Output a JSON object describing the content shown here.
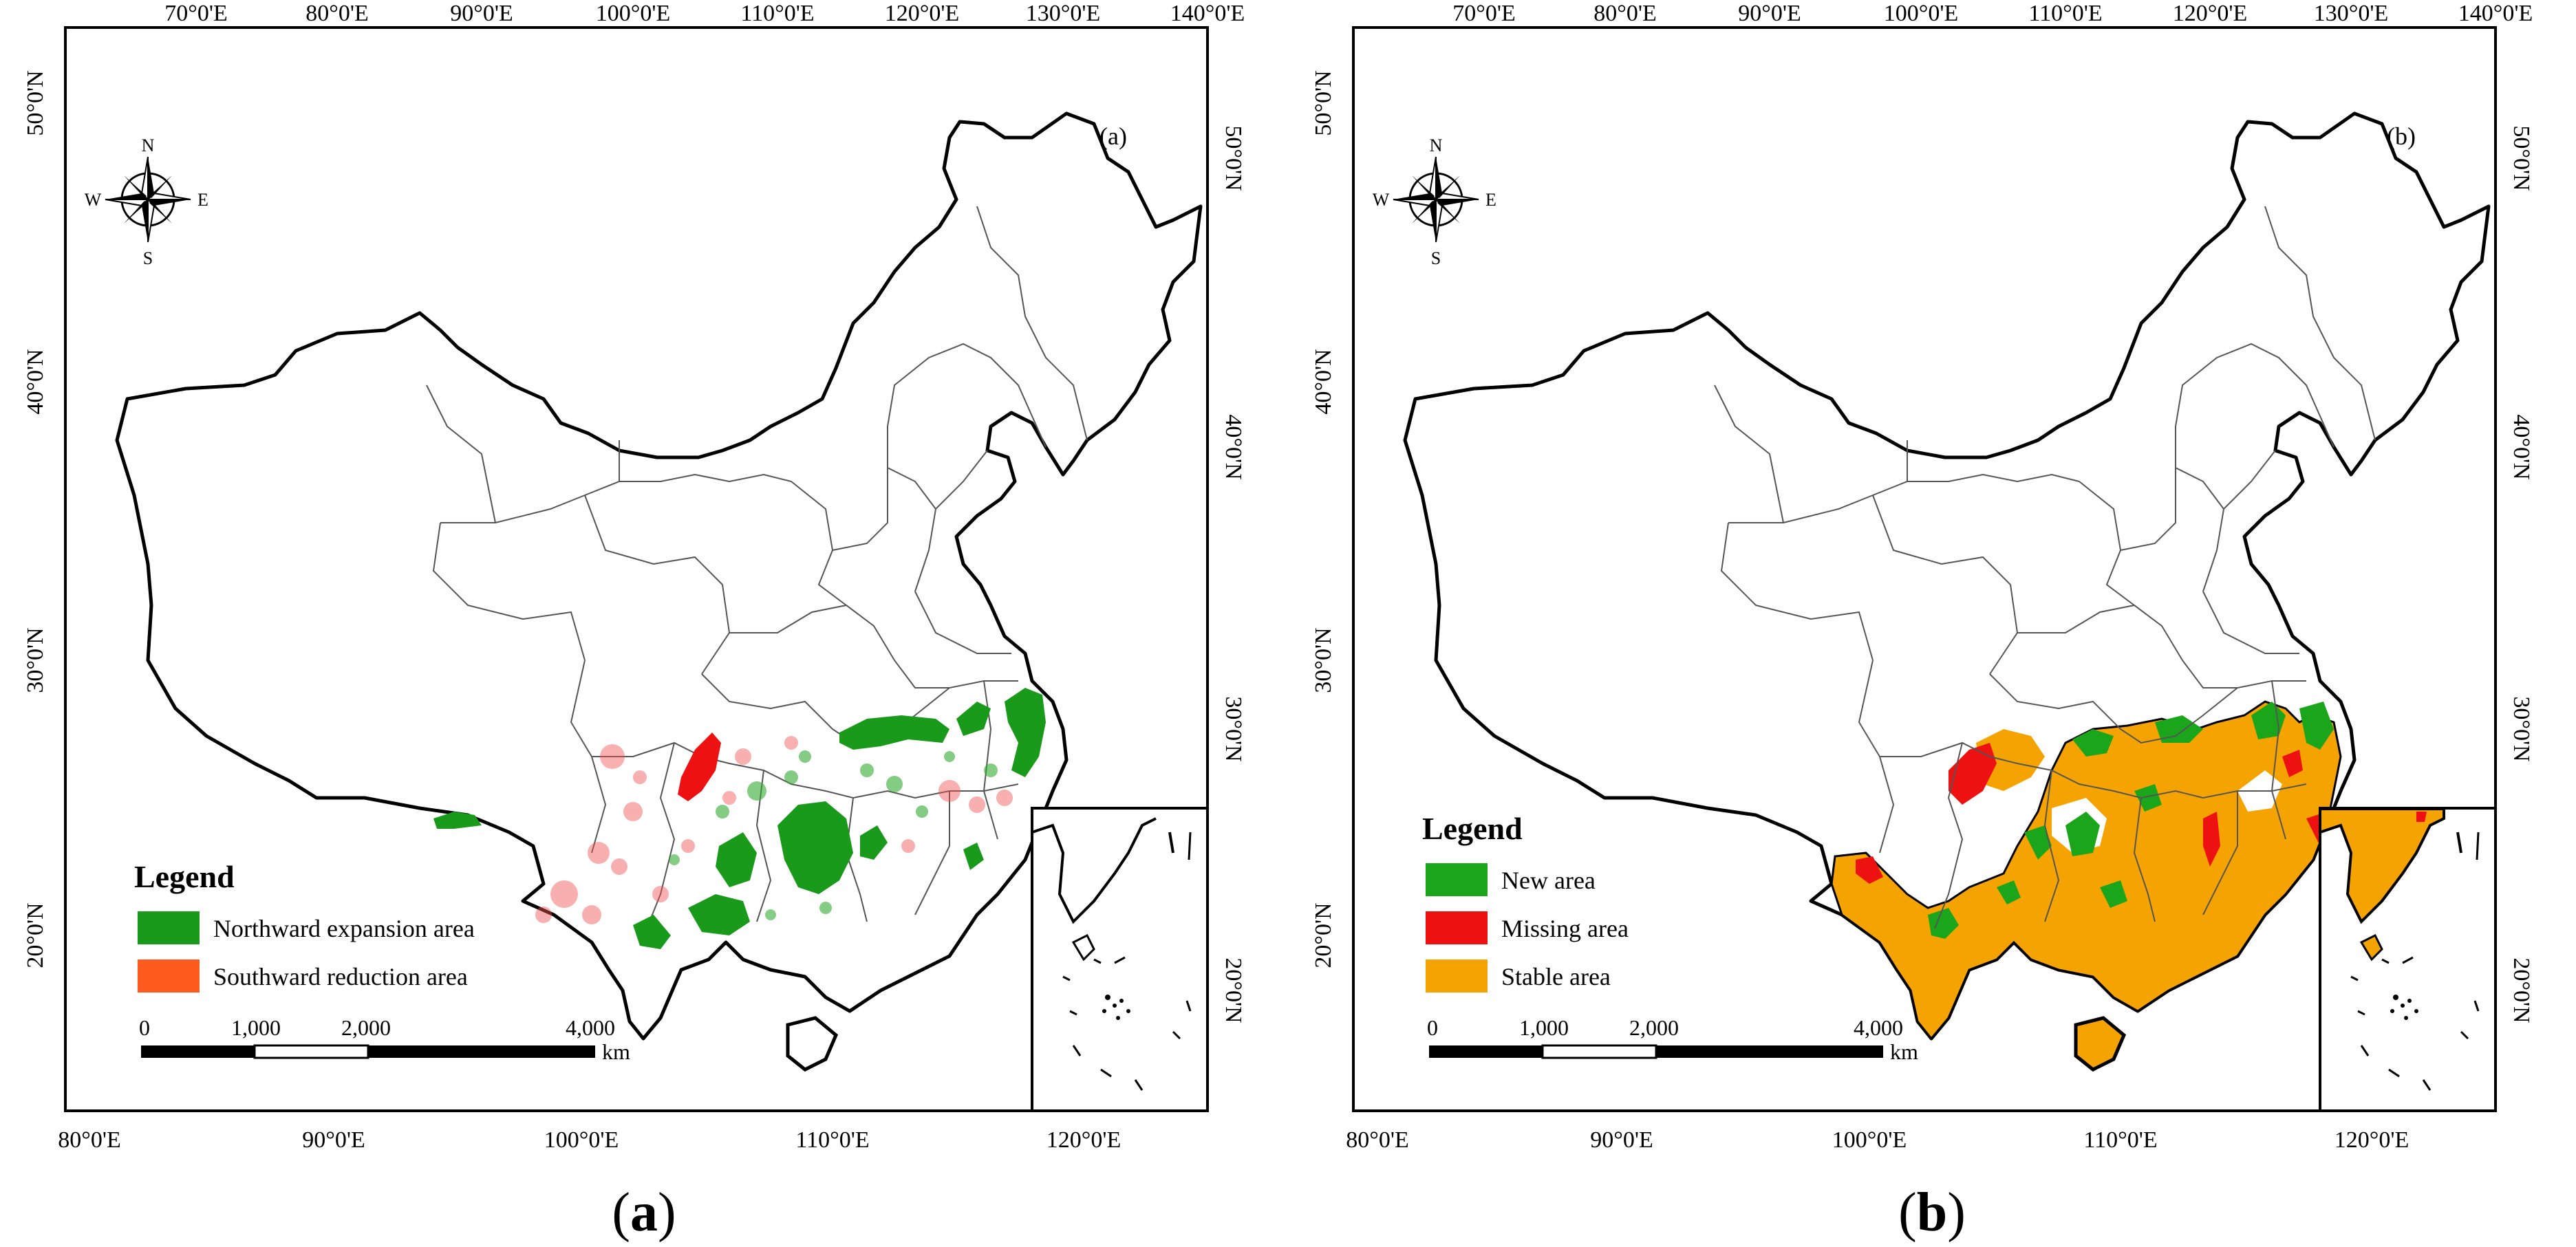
{
  "panels": [
    {
      "label": "(a)",
      "caption_letter": "a",
      "top_ticks": [
        "70°0'E",
        "80°0'E",
        "90°0'E",
        "100°0'E",
        "110°0'E",
        "120°0'E",
        "130°0'E",
        "140°0'E"
      ],
      "bottom_ticks": [
        "80°0'E",
        "90°0'E",
        "100°0'E",
        "110°0'E",
        "120°0'E"
      ],
      "left_ticks": [
        "50°0'N",
        "40°0'N",
        "30°0'N",
        "20°0'N"
      ],
      "right_ticks": [
        "50°0'N",
        "40°0'N",
        "30°0'N",
        "20°0'N"
      ],
      "compass": {
        "n": "N",
        "s": "S",
        "e": "E",
        "w": "W"
      },
      "legend": {
        "title": "Legend",
        "items": [
          {
            "label": "Northward expansion area",
            "color": "#1a9a1a"
          },
          {
            "label": "Southward reduction area",
            "color": "#ff5a1f"
          }
        ]
      },
      "scale": {
        "ticks": [
          "0",
          "1,000",
          "2,000",
          "4,000"
        ],
        "unit": "km"
      }
    },
    {
      "label": "(b)",
      "caption_letter": "b",
      "top_ticks": [
        "70°0'E",
        "80°0'E",
        "90°0'E",
        "100°0'E",
        "110°0'E",
        "120°0'E",
        "130°0'E",
        "140°0'E"
      ],
      "bottom_ticks": [
        "80°0'E",
        "90°0'E",
        "100°0'E",
        "110°0'E",
        "120°0'E"
      ],
      "left_ticks": [
        "50°0'N",
        "40°0'N",
        "30°0'N",
        "20°0'N"
      ],
      "right_ticks": [
        "50°0'N",
        "40°0'N",
        "30°0'N",
        "20°0'N"
      ],
      "compass": {
        "n": "N",
        "s": "S",
        "e": "E",
        "w": "W"
      },
      "legend": {
        "title": "Legend",
        "items": [
          {
            "label": "New area",
            "color": "#1aa51a"
          },
          {
            "label": "Missing area",
            "color": "#ee1111"
          },
          {
            "label": "Stable area",
            "color": "#f5a300"
          }
        ]
      },
      "scale": {
        "ticks": [
          "0",
          "1,000",
          "2,000",
          "4,000"
        ],
        "unit": "km"
      }
    }
  ]
}
